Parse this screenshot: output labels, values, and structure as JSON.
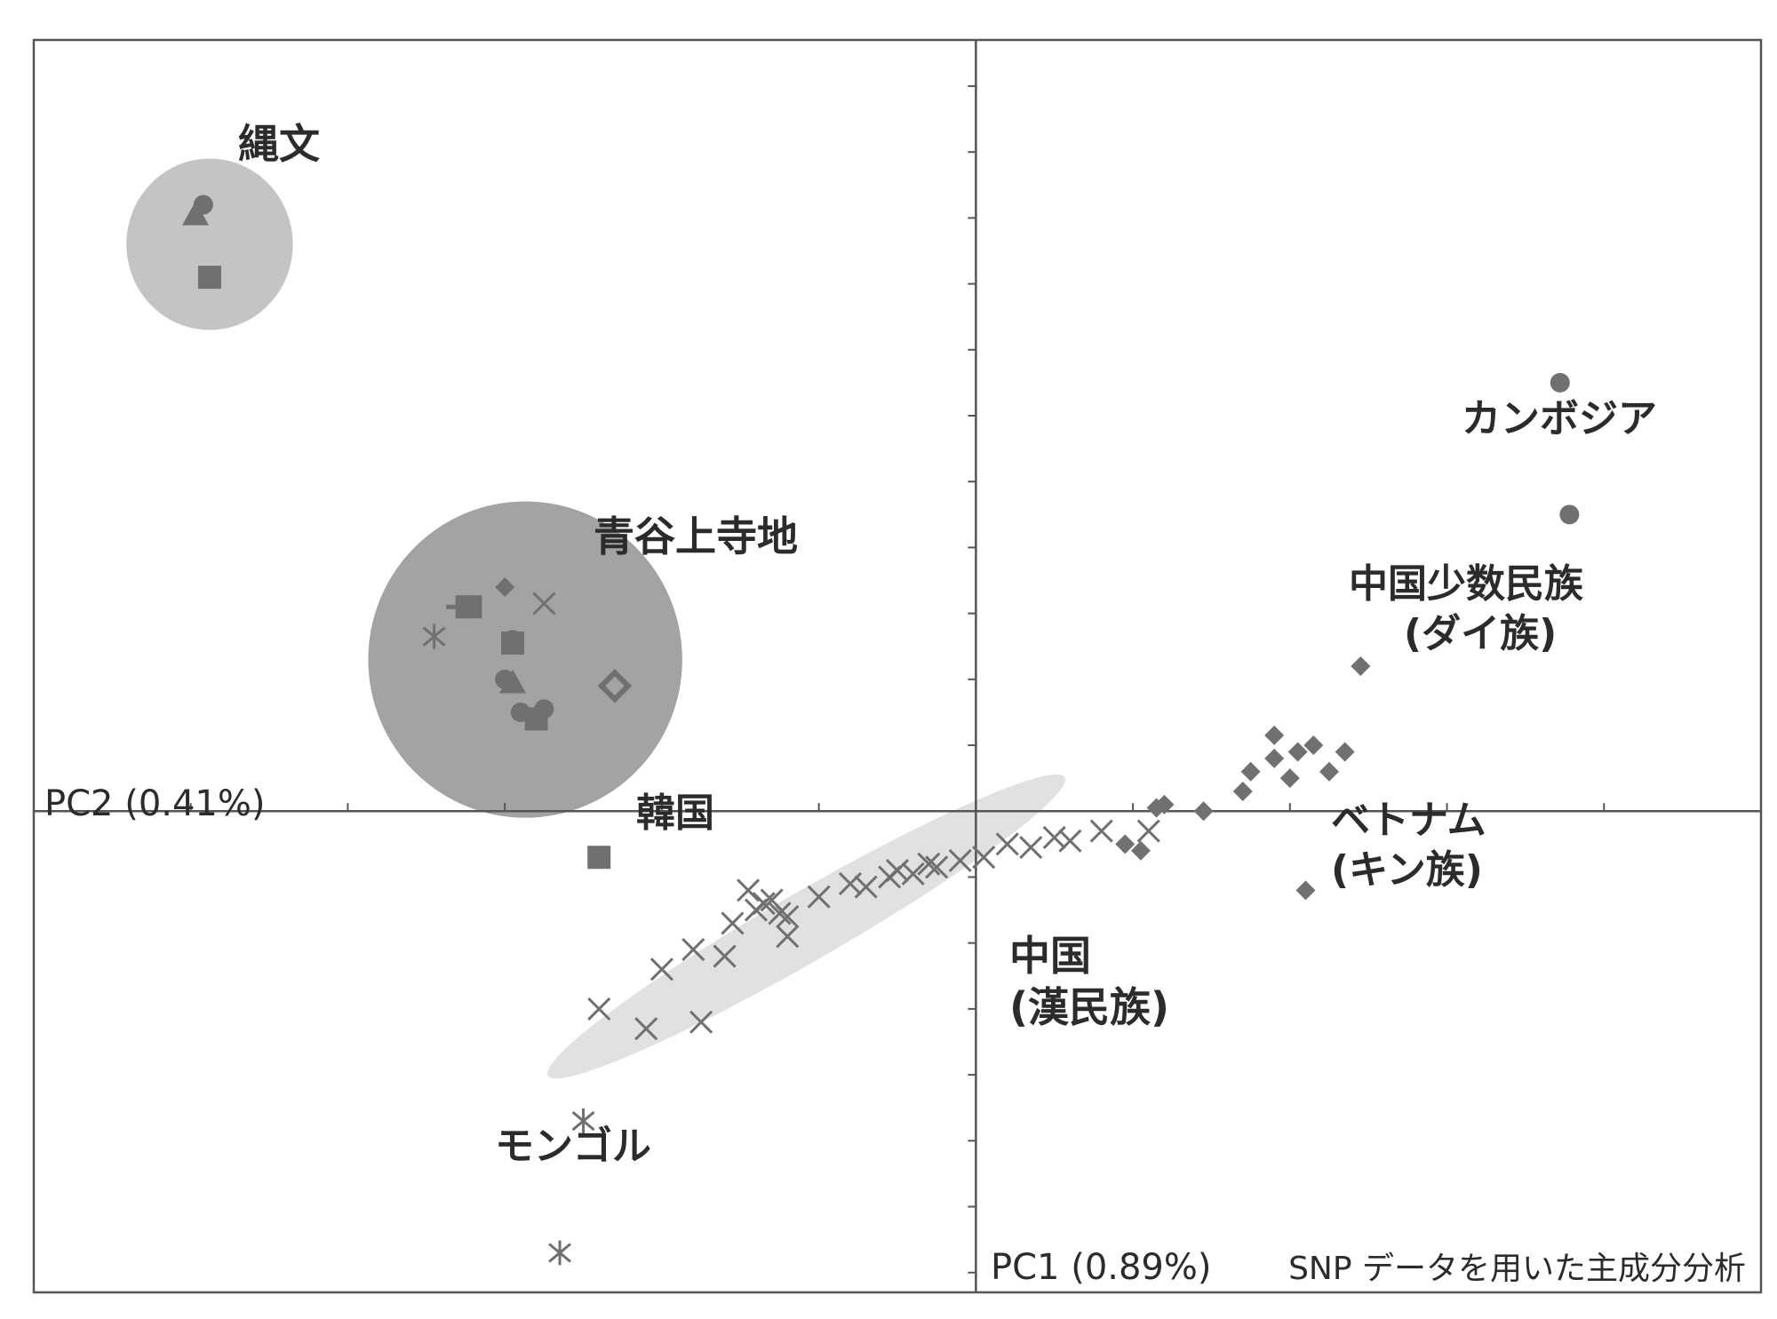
{
  "chart_data": {
    "type": "scatter",
    "title": "",
    "caption": "SNP データを用いた主成分分析",
    "xlabel": "PC1 (0.89%)",
    "ylabel": "PC2 (0.41%)",
    "xlim": [
      -6,
      5
    ],
    "ylim": [
      -7.3,
      11.7
    ],
    "grid": false,
    "legend": "none",
    "colors": {
      "marker": "#707070",
      "cluster_dark": "#a3a3a3",
      "cluster_light": "#c4c4c4",
      "cluster_pale": "#e1e1e1",
      "axis": "#555555",
      "text": "#2b2b2b"
    },
    "ellipses": [
      {
        "name": "jomon",
        "cx": -4.88,
        "cy": 8.6,
        "rx": 0.53,
        "ry": 1.3,
        "angle": 0,
        "tone": "cluster_light"
      },
      {
        "name": "aoya",
        "cx": -2.87,
        "cy": 2.3,
        "rx": 1.0,
        "ry": 2.4,
        "angle": 0,
        "tone": "cluster_dark"
      },
      {
        "name": "china_han",
        "cx": -1.08,
        "cy": -1.75,
        "rx": 1.9,
        "ry": 0.52,
        "angle": -30,
        "tone": "cluster_pale"
      }
    ],
    "groups": [
      {
        "name": "縄文",
        "label": "縄文",
        "marker": "mixed",
        "points": [
          {
            "x": -4.97,
            "y": 9.05,
            "m": "triangle"
          },
          {
            "x": -4.92,
            "y": 9.2,
            "m": "circle"
          },
          {
            "x": -4.88,
            "y": 8.1,
            "m": "square"
          }
        ]
      },
      {
        "name": "青谷上寺地",
        "label": "青谷上寺地",
        "marker": "mixed",
        "points": [
          {
            "x": -3.0,
            "y": 3.4,
            "m": "diamond"
          },
          {
            "x": -2.75,
            "y": 3.15,
            "m": "x"
          },
          {
            "x": -3.45,
            "y": 2.65,
            "m": "star"
          },
          {
            "x": -3.3,
            "y": 3.1,
            "m": "plus"
          },
          {
            "x": -3.22,
            "y": 3.1,
            "m": "square"
          },
          {
            "x": -2.95,
            "y": 2.6,
            "m": "circle"
          },
          {
            "x": -2.95,
            "y": 2.55,
            "m": "square"
          },
          {
            "x": -2.95,
            "y": 1.95,
            "m": "triangle"
          },
          {
            "x": -3.0,
            "y": 2.0,
            "m": "circle"
          },
          {
            "x": -2.9,
            "y": 1.5,
            "m": "circle"
          },
          {
            "x": -2.75,
            "y": 1.55,
            "m": "circle"
          },
          {
            "x": -2.8,
            "y": 1.4,
            "m": "square"
          },
          {
            "x": -2.3,
            "y": 1.9,
            "m": "diamond-open"
          }
        ]
      },
      {
        "name": "韓国",
        "label": "韓国",
        "marker": "square",
        "points": [
          {
            "x": -2.4,
            "y": -0.7
          }
        ]
      },
      {
        "name": "中国 (漢民族)",
        "label": "中国\n(漢民族)",
        "marker": "x",
        "points": [
          {
            "x": -1.45,
            "y": -1.2
          },
          {
            "x": -1.2,
            "y": -1.6
          },
          {
            "x": -1.0,
            "y": -1.3
          },
          {
            "x": -0.8,
            "y": -1.1
          },
          {
            "x": -0.5,
            "y": -0.9
          },
          {
            "x": -0.3,
            "y": -0.8
          },
          {
            "x": 0.2,
            "y": -0.5
          },
          {
            "x": 0.5,
            "y": -0.4
          },
          {
            "x": 0.8,
            "y": -0.3
          },
          {
            "x": 1.1,
            "y": -0.3
          },
          {
            "x": -1.35,
            "y": -1.4
          },
          {
            "x": -1.8,
            "y": -2.1
          },
          {
            "x": -2.0,
            "y": -2.4
          },
          {
            "x": -2.4,
            "y": -3.0
          },
          {
            "x": -2.1,
            "y": -3.3
          },
          {
            "x": -1.6,
            "y": -2.2
          },
          {
            "x": -1.75,
            "y": -3.2
          },
          {
            "x": -1.2,
            "y": -1.9
          }
        ]
      },
      {
        "name": "モンゴル",
        "label": "モンゴル",
        "marker": "star",
        "points": [
          {
            "x": -2.5,
            "y": -4.7
          },
          {
            "x": -2.65,
            "y": -6.7
          }
        ]
      },
      {
        "name": "中国少数民族 (ダイ族)",
        "label": "中国少数民族\n(ダイ族)",
        "marker": "diamond",
        "points": [
          {
            "x": 2.45,
            "y": 2.2
          },
          {
            "x": 1.2,
            "y": 0.1
          },
          {
            "x": 1.45,
            "y": 0.0
          },
          {
            "x": 1.75,
            "y": 0.6
          },
          {
            "x": 1.9,
            "y": 0.8
          },
          {
            "x": 2.05,
            "y": 0.9
          },
          {
            "x": 2.15,
            "y": 1.0
          },
          {
            "x": 2.35,
            "y": 0.9
          },
          {
            "x": 2.0,
            "y": 0.5
          },
          {
            "x": 2.25,
            "y": 0.6
          },
          {
            "x": 1.7,
            "y": 0.3
          },
          {
            "x": 1.9,
            "y": 1.15
          },
          {
            "x": 0.95,
            "y": -0.5
          },
          {
            "x": 1.05,
            "y": -0.6
          },
          {
            "x": 1.15,
            "y": 0.05
          }
        ]
      },
      {
        "name": "カンボジア",
        "label": "カンボジア",
        "marker": "circle",
        "points": [
          {
            "x": 3.72,
            "y": 6.5
          },
          {
            "x": 3.78,
            "y": 4.5
          }
        ]
      },
      {
        "name": "ベトナム (キン族)",
        "label": "ベトナム\n(キン族)",
        "marker": "diamond",
        "points": [
          {
            "x": 2.1,
            "y": -1.2
          }
        ]
      }
    ]
  }
}
